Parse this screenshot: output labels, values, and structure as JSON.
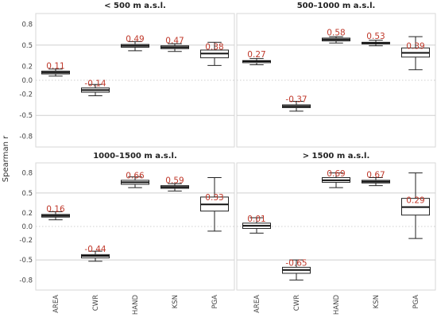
{
  "chart_data": {
    "type": "boxplot",
    "ylabel": "Spearman r",
    "categories": [
      "AREA",
      "CWR",
      "HAND",
      "KSN",
      "PGA"
    ],
    "yticks": [
      0.8,
      0.5,
      0.2,
      0.0,
      -0.2,
      -0.5,
      -0.8
    ],
    "ylim": [
      -0.95,
      0.95
    ],
    "panels": [
      {
        "title": "< 500 m a.s.l.",
        "labels": [
          "0.11",
          "-0.14",
          "0.49",
          "0.47",
          "0.38"
        ],
        "boxes": [
          {
            "wlo": 0.06,
            "q1": 0.09,
            "median": 0.11,
            "q3": 0.13,
            "whi": 0.16
          },
          {
            "wlo": -0.22,
            "q1": -0.17,
            "median": -0.14,
            "q3": -0.11,
            "whi": -0.06
          },
          {
            "wlo": 0.42,
            "q1": 0.47,
            "median": 0.49,
            "q3": 0.51,
            "whi": 0.55
          },
          {
            "wlo": 0.41,
            "q1": 0.45,
            "median": 0.47,
            "q3": 0.49,
            "whi": 0.52
          },
          {
            "wlo": 0.21,
            "q1": 0.32,
            "median": 0.38,
            "q3": 0.43,
            "whi": 0.54
          }
        ]
      },
      {
        "title": "500–1000 m a.s.l.",
        "labels": [
          "0.27",
          "-0.37",
          "0.58",
          "0.53",
          "0.39"
        ],
        "boxes": [
          {
            "wlo": 0.22,
            "q1": 0.25,
            "median": 0.27,
            "q3": 0.28,
            "whi": 0.31
          },
          {
            "wlo": -0.44,
            "q1": -0.39,
            "median": -0.37,
            "q3": -0.35,
            "whi": -0.3
          },
          {
            "wlo": 0.53,
            "q1": 0.56,
            "median": 0.58,
            "q3": 0.6,
            "whi": 0.62
          },
          {
            "wlo": 0.49,
            "q1": 0.52,
            "median": 0.53,
            "q3": 0.54,
            "whi": 0.57
          },
          {
            "wlo": 0.15,
            "q1": 0.33,
            "median": 0.39,
            "q3": 0.46,
            "whi": 0.62
          }
        ]
      },
      {
        "title": "1000–1500 m a.s.l.",
        "labels": [
          "0.16",
          "-0.44",
          "0.66",
          "0.59",
          "0.33"
        ],
        "boxes": [
          {
            "wlo": 0.1,
            "q1": 0.14,
            "median": 0.16,
            "q3": 0.18,
            "whi": 0.22
          },
          {
            "wlo": -0.52,
            "q1": -0.47,
            "median": -0.44,
            "q3": -0.42,
            "whi": -0.37
          },
          {
            "wlo": 0.58,
            "q1": 0.63,
            "median": 0.66,
            "q3": 0.69,
            "whi": 0.74
          },
          {
            "wlo": 0.53,
            "q1": 0.57,
            "median": 0.59,
            "q3": 0.61,
            "whi": 0.64
          },
          {
            "wlo": -0.07,
            "q1": 0.23,
            "median": 0.33,
            "q3": 0.44,
            "whi": 0.73
          }
        ]
      },
      {
        "title": "> 1500 m a.s.l.",
        "labels": [
          "0.01",
          "-0.65",
          "0.69",
          "0.67",
          "0.29"
        ],
        "boxes": [
          {
            "wlo": -0.1,
            "q1": -0.03,
            "median": 0.01,
            "q3": 0.05,
            "whi": 0.13
          },
          {
            "wlo": -0.8,
            "q1": -0.7,
            "median": -0.65,
            "q3": -0.61,
            "whi": -0.5
          },
          {
            "wlo": 0.58,
            "q1": 0.66,
            "median": 0.69,
            "q3": 0.73,
            "whi": 0.8
          },
          {
            "wlo": 0.61,
            "q1": 0.65,
            "median": 0.67,
            "q3": 0.69,
            "whi": 0.73
          },
          {
            "wlo": -0.18,
            "q1": 0.17,
            "median": 0.29,
            "q3": 0.42,
            "whi": 0.8
          }
        ]
      }
    ]
  }
}
